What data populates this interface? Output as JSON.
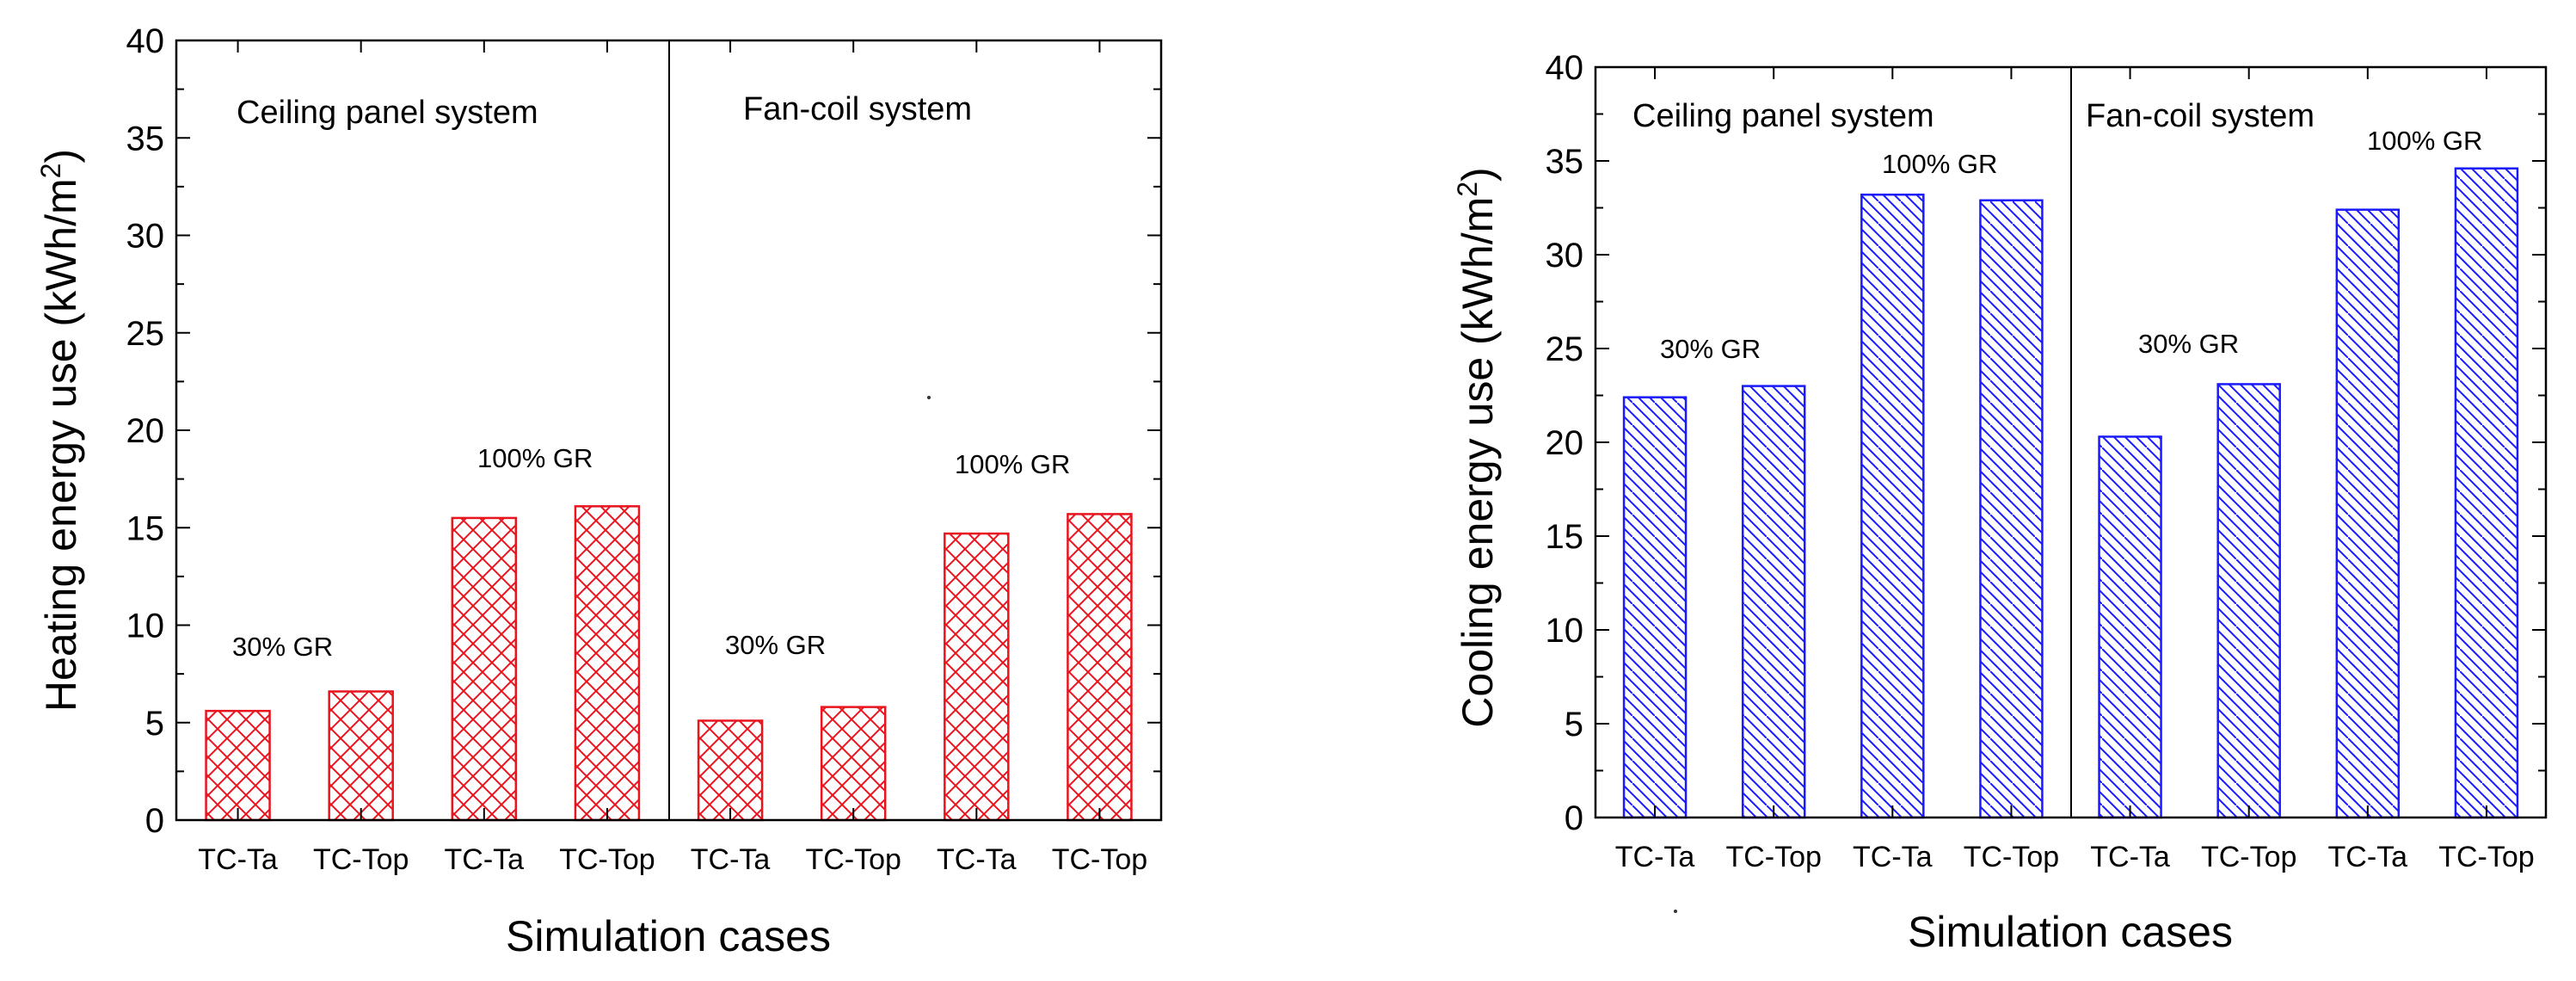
{
  "chart_data": [
    {
      "type": "bar",
      "ylabel": "Heating energy use (kWh/m²)",
      "ylabel_main": "Heating energy use (kWh/m",
      "ylabel_sup": "2",
      "ylabel_tail": ")",
      "xlabel": "Simulation cases",
      "ylim": [
        0,
        40
      ],
      "yticks": [
        "0",
        "5",
        "10",
        "15",
        "20",
        "25",
        "30",
        "35",
        "40"
      ],
      "categories": [
        "TC-Ta",
        "TC-Top",
        "TC-Ta",
        "TC-Top",
        "TC-Ta",
        "TC-Top",
        "TC-Ta",
        "TC-Top"
      ],
      "values": [
        5.6,
        6.6,
        15.5,
        16.1,
        5.1,
        5.8,
        14.7,
        15.7
      ],
      "groups": [
        "Ceiling panel system",
        "Fan-coil system"
      ],
      "annotations": [
        "30% GR",
        "100% GR",
        "30% GR",
        "100% GR"
      ],
      "bar_color": "#e8141e",
      "hatch": "crosshatch"
    },
    {
      "type": "bar",
      "ylabel": "Cooling energy use (kWh/m²)",
      "ylabel_main": "Cooling energy use (kWh/m",
      "ylabel_sup": "2",
      "ylabel_tail": ")",
      "xlabel": "Simulation cases",
      "ylim": [
        0,
        40
      ],
      "yticks": [
        "0",
        "5",
        "10",
        "15",
        "20",
        "25",
        "30",
        "35",
        "40"
      ],
      "categories": [
        "TC-Ta",
        "TC-Top",
        "TC-Ta",
        "TC-Top",
        "TC-Ta",
        "TC-Top",
        "TC-Ta",
        "TC-Top"
      ],
      "values": [
        22.4,
        23.0,
        33.2,
        32.9,
        20.3,
        23.1,
        32.4,
        34.6
      ],
      "groups": [
        "Ceiling panel system",
        "Fan-coil system"
      ],
      "annotations": [
        "30% GR",
        "100% GR",
        "30% GR",
        "100% GR"
      ],
      "bar_color": "#1a1aff",
      "hatch": "diagonal"
    }
  ]
}
